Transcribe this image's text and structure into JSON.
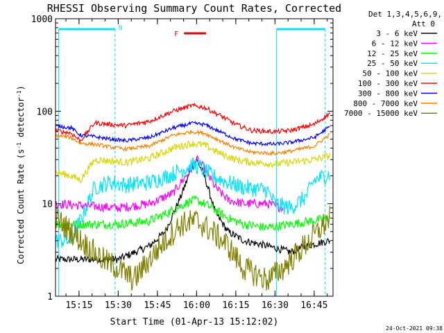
{
  "chart_data": {
    "type": "line",
    "title": "RHESSI Observing Summary Count Rates, Corrected",
    "xlabel": "Start Time (01-Apr-13 15:12:02)",
    "ylabel_parts": [
      "Corrected Count Rate (s",
      "-1",
      " detector",
      "-1",
      ")"
    ],
    "scale": {
      "y": "log"
    },
    "xlim_min": [
      15.1,
      16.87
    ],
    "ylim": [
      1,
      1000
    ],
    "x_ticks": [
      {
        "label": "15:15",
        "t": 15.25
      },
      {
        "label": "15:30",
        "t": 15.5
      },
      {
        "label": "15:45",
        "t": 15.75
      },
      {
        "label": "16:00",
        "t": 16.0
      },
      {
        "label": "16:15",
        "t": 16.25
      },
      {
        "label": "16:30",
        "t": 16.5
      },
      {
        "label": "16:45",
        "t": 16.75
      }
    ],
    "y_ticks": [
      {
        "label": "1",
        "v": 1
      },
      {
        "label": "10",
        "v": 10
      },
      {
        "label": "100",
        "v": 100
      },
      {
        "label": "1000",
        "v": 1000
      }
    ],
    "legend_header": [
      "Det 1,3,4,5,6,9,",
      "Att 0"
    ],
    "legend_position": "right",
    "series": [
      {
        "name": "3 - 6 keV",
        "color": "#000000",
        "values": [
          [
            15.1,
            2.5
          ],
          [
            15.5,
            2.5
          ],
          [
            15.7,
            3.5
          ],
          [
            15.8,
            5
          ],
          [
            15.9,
            12
          ],
          [
            15.97,
            25
          ],
          [
            16.0,
            30
          ],
          [
            16.05,
            20
          ],
          [
            16.12,
            8
          ],
          [
            16.2,
            5
          ],
          [
            16.3,
            4
          ],
          [
            16.45,
            3.5
          ],
          [
            16.6,
            3
          ],
          [
            16.7,
            3.5
          ],
          [
            16.85,
            4
          ]
        ]
      },
      {
        "name": "6 - 12 keV",
        "color": "#ff00ff",
        "values": [
          [
            15.1,
            10
          ],
          [
            15.5,
            9
          ],
          [
            15.7,
            10
          ],
          [
            15.85,
            13
          ],
          [
            15.95,
            22
          ],
          [
            16.0,
            30
          ],
          [
            16.05,
            24
          ],
          [
            16.12,
            15
          ],
          [
            16.2,
            11
          ],
          [
            16.3,
            10
          ],
          [
            16.45,
            10
          ],
          [
            16.55,
            9
          ]
        ]
      },
      {
        "name": "12 - 25 keV",
        "color": "#00ff00",
        "values": [
          [
            15.1,
            6
          ],
          [
            15.5,
            6
          ],
          [
            15.7,
            6.5
          ],
          [
            15.85,
            8.5
          ],
          [
            15.95,
            10.5
          ],
          [
            16.0,
            11
          ],
          [
            16.1,
            9
          ],
          [
            16.2,
            7
          ],
          [
            16.3,
            6
          ],
          [
            16.45,
            5.5
          ],
          [
            16.6,
            6
          ],
          [
            16.85,
            7
          ]
        ]
      },
      {
        "name": "25 - 50 keV",
        "color": "#00e5ff",
        "values": [
          [
            15.1,
            4
          ],
          [
            15.2,
            4
          ],
          [
            15.28,
            8
          ],
          [
            15.35,
            15
          ],
          [
            15.45,
            17
          ],
          [
            15.55,
            16
          ],
          [
            15.7,
            17
          ],
          [
            15.85,
            21
          ],
          [
            15.97,
            26
          ],
          [
            16.02,
            25
          ],
          [
            16.1,
            20
          ],
          [
            16.2,
            17
          ],
          [
            16.3,
            15
          ],
          [
            16.45,
            14
          ],
          [
            16.5,
            10
          ],
          [
            16.6,
            9
          ],
          [
            16.7,
            12
          ],
          [
            16.75,
            18
          ],
          [
            16.85,
            21
          ]
        ]
      },
      {
        "name": "50 - 100 keV",
        "color": "#d8d800",
        "values": [
          [
            15.1,
            22
          ],
          [
            15.2,
            20
          ],
          [
            15.26,
            18
          ],
          [
            15.35,
            30
          ],
          [
            15.45,
            29
          ],
          [
            15.55,
            28
          ],
          [
            15.7,
            31
          ],
          [
            15.85,
            40
          ],
          [
            15.97,
            45
          ],
          [
            16.05,
            43
          ],
          [
            16.15,
            35
          ],
          [
            16.25,
            30
          ],
          [
            16.35,
            28
          ],
          [
            16.5,
            27
          ],
          [
            16.6,
            28
          ],
          [
            16.75,
            30
          ],
          [
            16.85,
            33
          ]
        ]
      },
      {
        "name": "100 - 300 keV",
        "color": "#ff0000",
        "values": [
          [
            15.1,
            62
          ],
          [
            15.2,
            58
          ],
          [
            15.26,
            48
          ],
          [
            15.35,
            75
          ],
          [
            15.45,
            72
          ],
          [
            15.55,
            70
          ],
          [
            15.7,
            78
          ],
          [
            15.85,
            100
          ],
          [
            15.97,
            115
          ],
          [
            16.05,
            110
          ],
          [
            16.15,
            90
          ],
          [
            16.25,
            72
          ],
          [
            16.35,
            62
          ],
          [
            16.5,
            60
          ],
          [
            16.6,
            62
          ],
          [
            16.75,
            72
          ],
          [
            16.85,
            95
          ]
        ]
      },
      {
        "name": "300 - 800 keV",
        "color": "#0000ff",
        "values": [
          [
            15.1,
            70
          ],
          [
            15.2,
            66
          ],
          [
            15.26,
            55
          ],
          [
            15.35,
            53
          ],
          [
            15.45,
            50
          ],
          [
            15.55,
            48
          ],
          [
            15.7,
            52
          ],
          [
            15.85,
            66
          ],
          [
            15.97,
            74
          ],
          [
            16.05,
            72
          ],
          [
            16.15,
            60
          ],
          [
            16.25,
            50
          ],
          [
            16.35,
            45
          ],
          [
            16.5,
            44
          ],
          [
            16.6,
            46
          ],
          [
            16.75,
            52
          ],
          [
            16.85,
            68
          ]
        ]
      },
      {
        "name": "800 - 7000 keV",
        "color": "#ff8000",
        "values": [
          [
            15.1,
            55
          ],
          [
            15.2,
            52
          ],
          [
            15.26,
            45
          ],
          [
            15.35,
            44
          ],
          [
            15.45,
            41
          ],
          [
            15.55,
            39
          ],
          [
            15.7,
            42
          ],
          [
            15.85,
            55
          ],
          [
            15.97,
            60
          ],
          [
            16.05,
            58
          ],
          [
            16.15,
            48
          ],
          [
            16.25,
            40
          ],
          [
            16.35,
            36
          ],
          [
            16.5,
            35
          ],
          [
            16.6,
            37
          ],
          [
            16.75,
            42
          ],
          [
            16.85,
            56
          ]
        ]
      },
      {
        "name": "7000 - 15000 keV",
        "color": "#808000",
        "values": [
          [
            15.1,
            7
          ],
          [
            15.2,
            5
          ],
          [
            15.3,
            3.5
          ],
          [
            15.4,
            2.5
          ],
          [
            15.5,
            2
          ],
          [
            15.6,
            1.5
          ],
          [
            15.7,
            2.5
          ],
          [
            15.8,
            4
          ],
          [
            15.9,
            6
          ],
          [
            16.0,
            6.5
          ],
          [
            16.1,
            5
          ],
          [
            16.2,
            3.5
          ],
          [
            16.3,
            2
          ],
          [
            16.45,
            1.5
          ],
          [
            16.55,
            2
          ],
          [
            16.65,
            3
          ],
          [
            16.75,
            4.5
          ],
          [
            16.85,
            7
          ]
        ]
      }
    ],
    "annotations": {
      "night_label": "N",
      "flare_label": "F",
      "night_intervals": [
        [
          15.12,
          15.48
        ],
        [
          16.51,
          16.82
        ]
      ],
      "flare_interval": [
        15.92,
        16.06
      ]
    },
    "footer_timestamp": "24-Oct-2021 09:38"
  }
}
